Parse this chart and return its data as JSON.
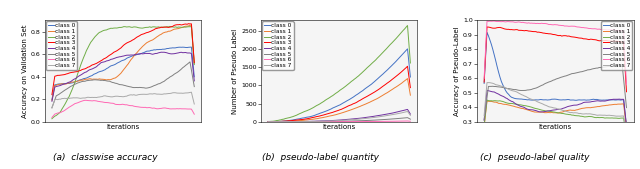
{
  "colors": [
    "#4472c4",
    "#ed7d31",
    "#70ad47",
    "#ff0000",
    "#7030a0",
    "#808080",
    "#ff69b4",
    "#a9a9a9"
  ],
  "class_labels": [
    "class 0",
    "class 1",
    "class 2",
    "class 3",
    "class 4",
    "class 5",
    "class 6",
    "class 7"
  ],
  "captions": [
    "(a)  classwise accuracy",
    "(b)  pseudo-label quantity",
    "(c)  pseudo-label quality"
  ],
  "plot_a": {
    "ylabel": "Accuracy on Validation Set",
    "xlabel": "Iterations",
    "ylim": [
      0.0,
      0.9
    ]
  },
  "plot_b": {
    "ylabel": "Number of Pseudo Label",
    "xlabel": "Iterations",
    "ylim": [
      0,
      2800
    ]
  },
  "plot_c": {
    "ylabel": "Accuracy of Pseudo-Label",
    "xlabel": "Iterations",
    "ylim": [
      0.3,
      1.0
    ]
  },
  "figure_bgcolor": "#ffffff",
  "legend_fontsize": 4.2,
  "axis_label_fontsize": 5,
  "tick_fontsize": 4.5,
  "caption_fontsize": 6.5
}
